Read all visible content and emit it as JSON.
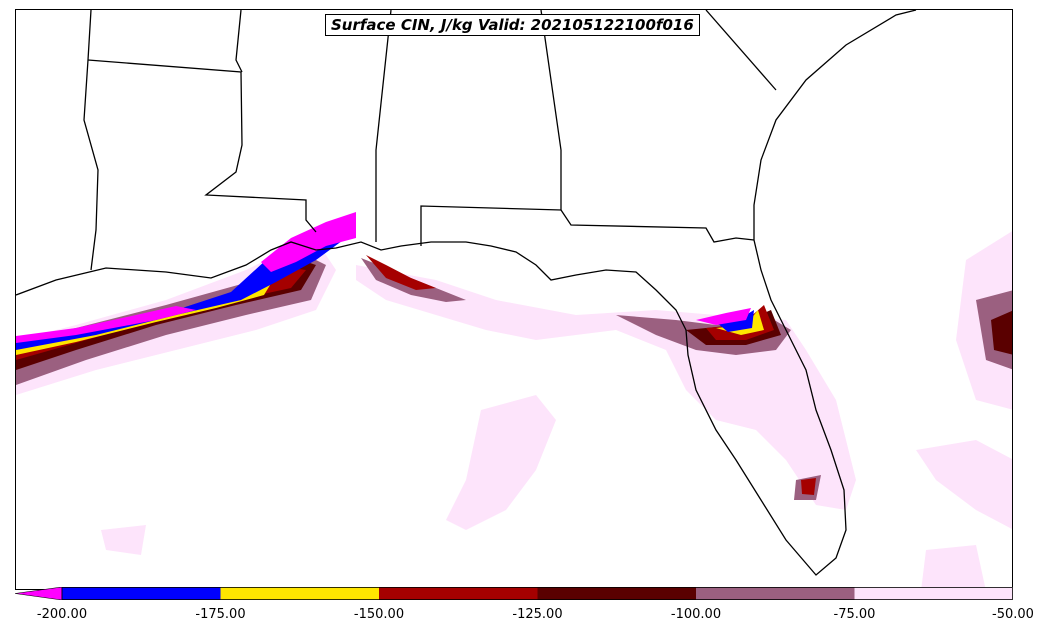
{
  "title": "Surface CIN, J/kg Valid: 202105122100f016",
  "colorbar": {
    "extend": "min",
    "bins": [
      {
        "from": -200,
        "to": -175,
        "color": "#0000ff"
      },
      {
        "from": -175,
        "to": -150,
        "color": "#ffe600"
      },
      {
        "from": -150,
        "to": -125,
        "color": "#a50000"
      },
      {
        "from": -125,
        "to": -100,
        "color": "#5a0000"
      },
      {
        "from": -100,
        "to": -75,
        "color": "#9b6080"
      },
      {
        "from": -75,
        "to": -50,
        "color": "#fde4fb"
      }
    ],
    "under_color": "#ff00ff",
    "tick_labels": [
      "-200.00",
      "-175.00",
      "-150.00",
      "-125.00",
      "-100.00",
      "-75.00",
      "-50.00"
    ]
  }
}
